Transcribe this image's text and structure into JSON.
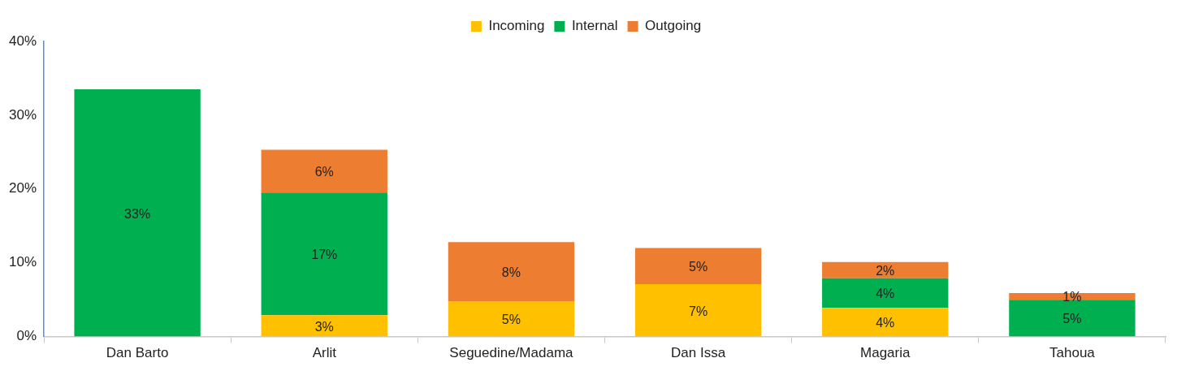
{
  "chart_data": {
    "type": "bar",
    "stacked": true,
    "categories": [
      "Dan Barto",
      "Arlit",
      "Seguedine/Madama",
      "Dan Issa",
      "Magaria",
      "Tahoua"
    ],
    "series": [
      {
        "name": "Incoming",
        "color": "#ffc000",
        "values": [
          null,
          2.9,
          4.8,
          7.1,
          3.9,
          null
        ],
        "value_labels": [
          null,
          "3%",
          "5%",
          "7%",
          "4%",
          null
        ]
      },
      {
        "name": "Internal",
        "color": "#00b050",
        "values": [
          33.5,
          16.6,
          null,
          null,
          4.0,
          5.0
        ],
        "value_labels": [
          "33%",
          "17%",
          null,
          null,
          "4%",
          "5%"
        ]
      },
      {
        "name": "Outgoing",
        "color": "#ed7d31",
        "values": [
          null,
          5.8,
          8.0,
          4.9,
          2.2,
          0.9
        ],
        "value_labels": [
          null,
          "6%",
          "8%",
          "5%",
          "2%",
          "1%"
        ]
      }
    ],
    "ylim": [
      0,
      40
    ],
    "yticks": [
      {
        "value": 0,
        "label": "0%"
      },
      {
        "value": 10,
        "label": "10%"
      },
      {
        "value": 20,
        "label": "20%"
      },
      {
        "value": 30,
        "label": "30%"
      },
      {
        "value": 40,
        "label": "40%"
      }
    ],
    "grid": false,
    "legend": "top"
  }
}
